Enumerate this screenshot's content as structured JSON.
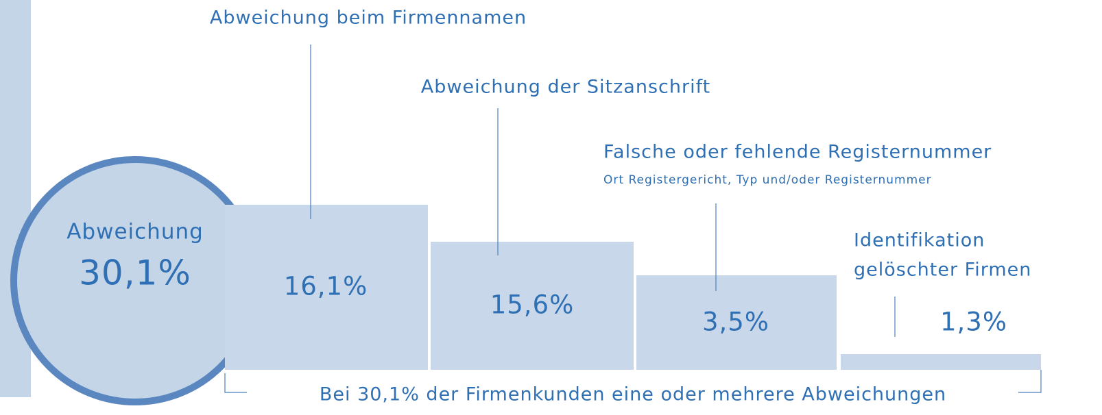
{
  "circle": {
    "label": "Abweichung",
    "value": "30,1%"
  },
  "items": [
    {
      "label": [
        "Abweichung beim Firmennamen"
      ],
      "value": "16,1%"
    },
    {
      "label": [
        "Abweichung der Sitzanschrift"
      ],
      "value": "15,6%"
    },
    {
      "label": [
        "Falsche oder fehlende Registernummer"
      ],
      "sublabel": "Ort Registergericht, Typ und/oder Registernummer",
      "value": "3,5%"
    },
    {
      "label": [
        "Identifikation",
        "gelöschter Firmen"
      ],
      "value": "1,3%"
    }
  ],
  "footer": "Bei 30,1% der Firmenkunden eine oder mehrere Abweichungen"
}
